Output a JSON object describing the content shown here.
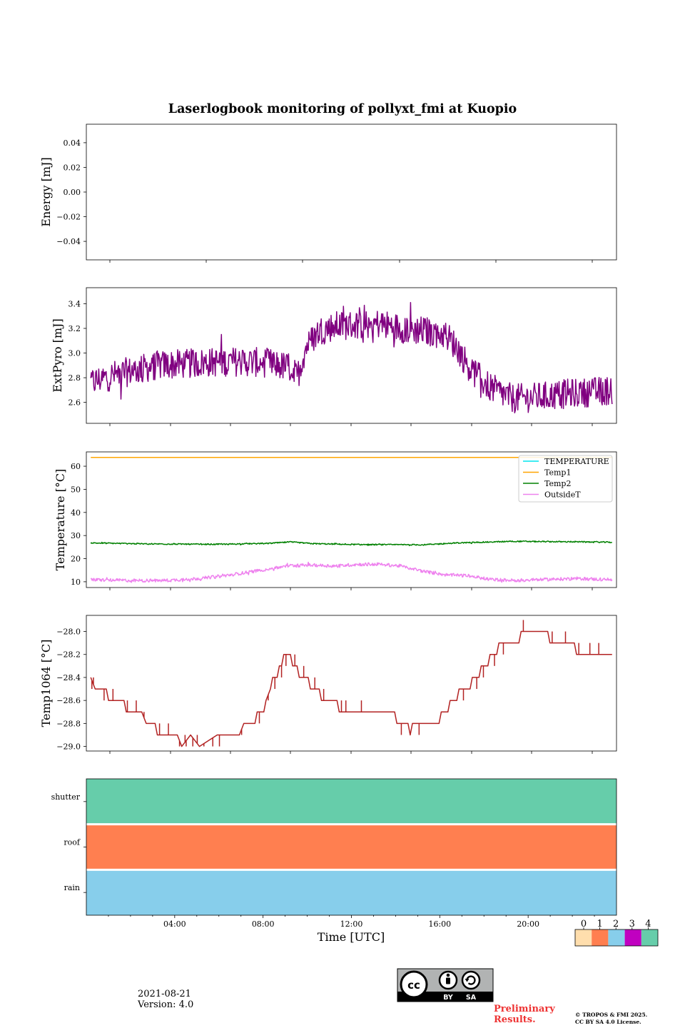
{
  "figure": {
    "title": "Laserlogbook monitoring of pollyxt_fmi at Kuopio",
    "date": "2021-08-21",
    "version": "Version: 4.0",
    "preliminary": "Preliminary Results.",
    "copyright_line1": "© TROPOS & FMI 2025.",
    "copyright_line2": "CC BY SA 4.0 License.",
    "license_badge": {
      "cc": "cc",
      "by": "BY",
      "sa": "SA"
    }
  },
  "chart_data": [
    {
      "id": "energy",
      "type": "line",
      "ylabel": "Energy [mJ]",
      "ylim": [
        -0.055,
        0.055
      ],
      "yticks": [
        0.04,
        0.02,
        0.0,
        -0.02,
        -0.04
      ],
      "yticklabels": [
        "0.04",
        "0.02",
        "0.00",
        "−0.02",
        "−0.04"
      ],
      "xlim": [
        0,
        24
      ],
      "series": []
    },
    {
      "id": "extpyro",
      "type": "line",
      "ylabel": "ExtPyro [mJ]",
      "ylim": [
        2.43,
        3.53
      ],
      "yticks": [
        2.6,
        2.8,
        3.0,
        3.2,
        3.4
      ],
      "yticklabels": [
        "2.6",
        "2.8",
        "3.0",
        "3.2",
        "3.4"
      ],
      "xlim": [
        0.3,
        24.2
      ],
      "series": [
        {
          "name": "ExtPyro",
          "color": "#800080",
          "noise": 0.12,
          "points": [
            [
              0.5,
              2.76
            ],
            [
              1.5,
              2.82
            ],
            [
              2.5,
              2.86
            ],
            [
              3.5,
              2.9
            ],
            [
              4.5,
              2.91
            ],
            [
              5.5,
              2.92
            ],
            [
              6.5,
              2.93
            ],
            [
              7.5,
              2.93
            ],
            [
              8.5,
              2.92
            ],
            [
              9.5,
              2.88
            ],
            [
              9.8,
              2.8
            ],
            [
              10.2,
              3.05
            ],
            [
              10.8,
              3.18
            ],
            [
              11.5,
              3.22
            ],
            [
              12.5,
              3.23
            ],
            [
              13.5,
              3.24
            ],
            [
              14.5,
              3.2
            ],
            [
              15.5,
              3.18
            ],
            [
              16.5,
              3.15
            ],
            [
              17.0,
              3.05
            ],
            [
              17.5,
              2.9
            ],
            [
              18.0,
              2.8
            ],
            [
              18.5,
              2.72
            ],
            [
              19.5,
              2.63
            ],
            [
              20.5,
              2.64
            ],
            [
              22.0,
              2.67
            ],
            [
              23.5,
              2.69
            ],
            [
              24.0,
              2.7
            ]
          ]
        }
      ]
    },
    {
      "id": "temperature",
      "type": "line",
      "ylabel": "Temperature [°C]",
      "ylim": [
        7.5,
        66.2
      ],
      "yticks": [
        10,
        20,
        30,
        40,
        50,
        60
      ],
      "yticklabels": [
        "10",
        "20",
        "30",
        "40",
        "50",
        "60"
      ],
      "xlim": [
        0.3,
        24.2
      ],
      "legend": {
        "placement": "top-right",
        "entries": [
          "TEMPERATURE",
          "Temp1",
          "Temp2",
          "OutsideT"
        ]
      },
      "series": [
        {
          "name": "TEMPERATURE",
          "color": "#00e5ee",
          "noise": 0,
          "points": []
        },
        {
          "name": "Temp1",
          "color": "#ffa500",
          "noise": 0,
          "points": [
            [
              0.5,
              63.8
            ],
            [
              24.0,
              63.8
            ]
          ]
        },
        {
          "name": "Temp2",
          "color": "#008000",
          "noise": 0.25,
          "points": [
            [
              0.5,
              26.8
            ],
            [
              3.0,
              26.4
            ],
            [
              6.0,
              26.2
            ],
            [
              8.5,
              26.6
            ],
            [
              9.5,
              27.2
            ],
            [
              10.5,
              26.5
            ],
            [
              12.5,
              26.1
            ],
            [
              15.5,
              26.0
            ],
            [
              17.0,
              26.8
            ],
            [
              19.5,
              27.5
            ],
            [
              22.0,
              27.3
            ],
            [
              24.0,
              27.1
            ]
          ]
        },
        {
          "name": "OutsideT",
          "color": "#ee82ee",
          "noise": 0.7,
          "points": [
            [
              0.5,
              10.9
            ],
            [
              2.5,
              10.5
            ],
            [
              4.0,
              10.6
            ],
            [
              5.5,
              11.5
            ],
            [
              6.5,
              12.6
            ],
            [
              7.5,
              14.0
            ],
            [
              8.5,
              15.5
            ],
            [
              9.5,
              17.0
            ],
            [
              10.5,
              17.2
            ],
            [
              11.5,
              16.8
            ],
            [
              12.5,
              17.5
            ],
            [
              13.5,
              17.6
            ],
            [
              14.5,
              16.8
            ],
            [
              15.5,
              14.5
            ],
            [
              16.5,
              13.0
            ],
            [
              17.5,
              12.6
            ],
            [
              18.5,
              11.0
            ],
            [
              19.5,
              10.6
            ],
            [
              21.5,
              11.1
            ],
            [
              22.5,
              11.4
            ],
            [
              24.0,
              10.8
            ]
          ]
        }
      ]
    },
    {
      "id": "temp1064",
      "type": "line",
      "ylabel": "Temp1064 [°C]",
      "ylim": [
        -29.04,
        -27.86
      ],
      "yticks": [
        -28.0,
        -28.2,
        -28.4,
        -28.6,
        -28.8,
        -29.0
      ],
      "yticklabels": [
        "−28.0",
        "−28.2",
        "−28.4",
        "−28.6",
        "−28.8",
        "−29.0"
      ],
      "xlim": [
        0.3,
        24.2
      ],
      "series": [
        {
          "name": "Temp1064",
          "color": "#b22222",
          "noise": 0,
          "points": [
            [
              0.5,
              -28.4
            ],
            [
              0.7,
              -28.5
            ],
            [
              1.2,
              -28.5
            ],
            [
              1.3,
              -28.6
            ],
            [
              1.9,
              -28.6
            ],
            [
              2.0,
              -28.6
            ],
            [
              2.1,
              -28.7
            ],
            [
              2.8,
              -28.7
            ],
            [
              3.0,
              -28.8
            ],
            [
              3.4,
              -28.8
            ],
            [
              3.5,
              -28.9
            ],
            [
              4.4,
              -28.9
            ],
            [
              4.6,
              -29.0
            ],
            [
              5.0,
              -28.9
            ],
            [
              5.4,
              -29.0
            ],
            [
              6.2,
              -28.9
            ],
            [
              7.2,
              -28.9
            ],
            [
              7.4,
              -28.8
            ],
            [
              7.9,
              -28.8
            ],
            [
              8.0,
              -28.7
            ],
            [
              8.3,
              -28.7
            ],
            [
              8.4,
              -28.6
            ],
            [
              8.6,
              -28.5
            ],
            [
              8.7,
              -28.4
            ],
            [
              8.9,
              -28.4
            ],
            [
              9.0,
              -28.3
            ],
            [
              9.1,
              -28.3
            ],
            [
              9.2,
              -28.2
            ],
            [
              9.5,
              -28.2
            ],
            [
              9.6,
              -28.3
            ],
            [
              9.8,
              -28.3
            ],
            [
              9.9,
              -28.4
            ],
            [
              10.3,
              -28.4
            ],
            [
              10.4,
              -28.5
            ],
            [
              10.8,
              -28.5
            ],
            [
              10.9,
              -28.6
            ],
            [
              11.5,
              -28.6
            ],
            [
              11.6,
              -28.6
            ],
            [
              11.7,
              -28.7
            ],
            [
              12.8,
              -28.7
            ],
            [
              13.7,
              -28.7
            ],
            [
              14.2,
              -28.7
            ],
            [
              14.3,
              -28.8
            ],
            [
              14.8,
              -28.8
            ],
            [
              14.9,
              -28.9
            ],
            [
              15.0,
              -28.8
            ],
            [
              16.2,
              -28.8
            ],
            [
              16.3,
              -28.7
            ],
            [
              16.6,
              -28.7
            ],
            [
              16.7,
              -28.6
            ],
            [
              17.0,
              -28.6
            ],
            [
              17.1,
              -28.5
            ],
            [
              17.6,
              -28.5
            ],
            [
              17.7,
              -28.4
            ],
            [
              18.0,
              -28.4
            ],
            [
              18.1,
              -28.3
            ],
            [
              18.4,
              -28.3
            ],
            [
              18.5,
              -28.2
            ],
            [
              18.8,
              -28.2
            ],
            [
              18.9,
              -28.1
            ],
            [
              19.8,
              -28.1
            ],
            [
              19.9,
              -28.0
            ],
            [
              21.1,
              -28.0
            ],
            [
              21.2,
              -28.1
            ],
            [
              22.3,
              -28.1
            ],
            [
              22.4,
              -28.2
            ],
            [
              24.0,
              -28.2
            ]
          ]
        }
      ],
      "spikes": [
        [
          0.55,
          -28.5
        ],
        [
          0.62,
          -28.4
        ],
        [
          1.1,
          -28.6
        ],
        [
          1.5,
          -28.5
        ],
        [
          1.75,
          -28.6
        ],
        [
          2.15,
          -28.6
        ],
        [
          2.3,
          -28.7
        ],
        [
          2.55,
          -28.6
        ],
        [
          2.9,
          -28.7
        ],
        [
          3.2,
          -28.8
        ],
        [
          3.6,
          -28.8
        ],
        [
          4.0,
          -28.8
        ],
        [
          4.2,
          -28.9
        ],
        [
          4.5,
          -29.0
        ],
        [
          4.75,
          -28.9
        ],
        [
          4.8,
          -29.0
        ],
        [
          5.1,
          -29.0
        ],
        [
          5.3,
          -28.9
        ],
        [
          5.6,
          -29.0
        ],
        [
          6.0,
          -29.0
        ],
        [
          6.3,
          -29.0
        ],
        [
          7.3,
          -28.9
        ],
        [
          7.6,
          -28.8
        ],
        [
          8.1,
          -28.8
        ],
        [
          8.5,
          -28.6
        ],
        [
          8.8,
          -28.5
        ],
        [
          9.1,
          -28.4
        ],
        [
          9.3,
          -28.3
        ],
        [
          9.7,
          -28.2
        ],
        [
          10.1,
          -28.3
        ],
        [
          10.6,
          -28.4
        ],
        [
          11.0,
          -28.5
        ],
        [
          11.8,
          -28.6
        ],
        [
          12.0,
          -28.6
        ],
        [
          12.7,
          -28.6
        ],
        [
          14.5,
          -28.9
        ],
        [
          15.3,
          -28.9
        ],
        [
          15.6,
          -28.8
        ],
        [
          16.0,
          -28.8
        ],
        [
          17.3,
          -28.6
        ],
        [
          17.9,
          -28.5
        ],
        [
          18.2,
          -28.4
        ],
        [
          18.7,
          -28.3
        ],
        [
          19.1,
          -28.2
        ],
        [
          19.3,
          -28.1
        ],
        [
          20.0,
          -27.9
        ],
        [
          20.6,
          -28.0
        ],
        [
          21.3,
          -28.0
        ],
        [
          21.5,
          -28.1
        ],
        [
          21.9,
          -28.0
        ],
        [
          22.5,
          -28.1
        ],
        [
          22.8,
          -28.2
        ],
        [
          23.0,
          -28.1
        ],
        [
          23.4,
          -28.1
        ],
        [
          23.6,
          -28.2
        ]
      ]
    },
    {
      "id": "status",
      "type": "heatmap",
      "rows": [
        "shutter",
        "roof",
        "rain"
      ],
      "row_values": [
        4,
        1,
        2
      ],
      "xlim": [
        0,
        24
      ],
      "xlabel": "Time [UTC]",
      "xticks": [
        4,
        8,
        12,
        16,
        20
      ],
      "xticklabels": [
        "04:00",
        "08:00",
        "12:00",
        "16:00",
        "20:00"
      ],
      "colorbar": {
        "levels": [
          0,
          1,
          2,
          3,
          4
        ],
        "labels": [
          "0",
          "1",
          "2",
          "3",
          "4"
        ],
        "colors": [
          "#ffdead",
          "#ff7f50",
          "#87ceeb",
          "#c000c0",
          "#66cdaa"
        ]
      }
    }
  ]
}
